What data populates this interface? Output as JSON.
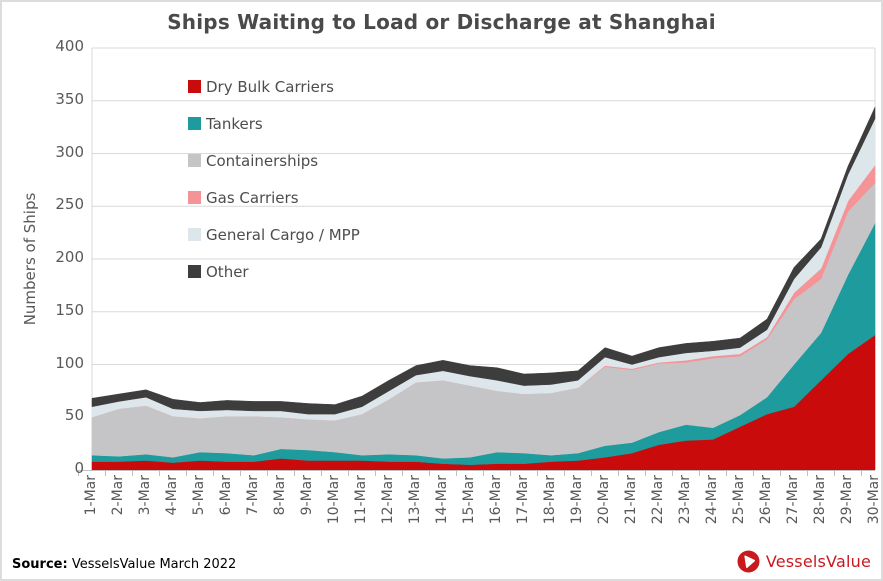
{
  "title": "Ships Waiting to Load or Discharge at Shanghai",
  "source": {
    "label": "Source:",
    "text": " VesselsValue March 2022"
  },
  "brand": {
    "name": "VesselsValue",
    "color": "#c9191f"
  },
  "chart_data": {
    "type": "area",
    "stacked": true,
    "title": "Ships Waiting to Load or Discharge at Shanghai",
    "xlabel": "",
    "ylabel": "Numbers of Ships",
    "ylim": [
      0,
      400
    ],
    "yticks": [
      0,
      50,
      100,
      150,
      200,
      250,
      300,
      350,
      400
    ],
    "grid": "horizontal",
    "gridline_color": "#d9d9d9",
    "tick_color": "#bfbfbf",
    "legend_position": "top-left-inside",
    "categories": [
      "1-Mar",
      "2-Mar",
      "3-Mar",
      "4-Mar",
      "5-Mar",
      "6-Mar",
      "7-Mar",
      "8-Mar",
      "9-Mar",
      "10-Mar",
      "11-Mar",
      "12-Mar",
      "13-Mar",
      "14-Mar",
      "15-Mar",
      "16-Mar",
      "17-Mar",
      "18-Mar",
      "19-Mar",
      "20-Mar",
      "21-Mar",
      "22-Mar",
      "23-Mar",
      "24-Mar",
      "25-Mar",
      "26-Mar",
      "27-Mar",
      "28-Mar",
      "29-Mar",
      "30-Mar"
    ],
    "series": [
      {
        "name": "Dry Bulk Carriers",
        "color": "#c90b0b",
        "values": [
          8,
          8,
          9,
          7,
          9,
          8,
          8,
          11,
          9,
          9,
          9,
          8,
          8,
          6,
          5,
          6,
          6,
          8,
          9,
          12,
          16,
          24,
          28,
          29,
          41,
          53,
          60,
          85,
          110,
          128
        ]
      },
      {
        "name": "Tankers",
        "color": "#1d9b9d",
        "values": [
          6,
          5,
          6,
          5,
          8,
          8,
          6,
          9,
          10,
          8,
          5,
          7,
          6,
          5,
          7,
          11,
          10,
          6,
          7,
          11,
          10,
          12,
          15,
          11,
          11,
          16,
          40,
          45,
          75,
          106
        ]
      },
      {
        "name": "Containerships",
        "color": "#c5c5c7",
        "values": [
          36,
          45,
          46,
          39,
          32,
          35,
          37,
          30,
          29,
          30,
          39,
          52,
          69,
          74,
          68,
          58,
          56,
          59,
          62,
          75,
          69,
          65,
          59,
          66,
          56,
          55,
          62,
          51,
          60,
          38
        ]
      },
      {
        "name": "Gas Carriers",
        "color": "#f59497",
        "values": [
          0,
          0,
          0,
          0,
          0,
          0,
          0,
          0,
          0,
          0,
          0,
          0,
          0,
          0,
          0,
          0,
          0,
          0,
          0,
          1,
          1,
          1,
          2,
          2,
          2,
          2,
          6,
          10,
          10,
          17
        ]
      },
      {
        "name": "General Cargo / MPP",
        "color": "#dde6ea",
        "values": [
          10,
          7,
          8,
          7,
          7,
          6,
          5,
          6,
          5,
          6,
          7,
          8,
          7,
          9,
          9,
          10,
          8,
          8,
          7,
          8,
          4,
          5,
          7,
          5,
          6,
          7,
          13,
          20,
          25,
          44
        ]
      },
      {
        "name": "Other",
        "color": "#3d3d3d",
        "values": [
          8,
          7,
          7,
          9,
          8,
          9,
          9,
          9,
          10,
          9,
          10,
          10,
          9,
          10,
          10,
          12,
          11,
          11,
          9,
          9,
          8,
          9,
          9,
          9,
          9,
          10,
          11,
          8,
          8,
          11
        ]
      }
    ]
  }
}
